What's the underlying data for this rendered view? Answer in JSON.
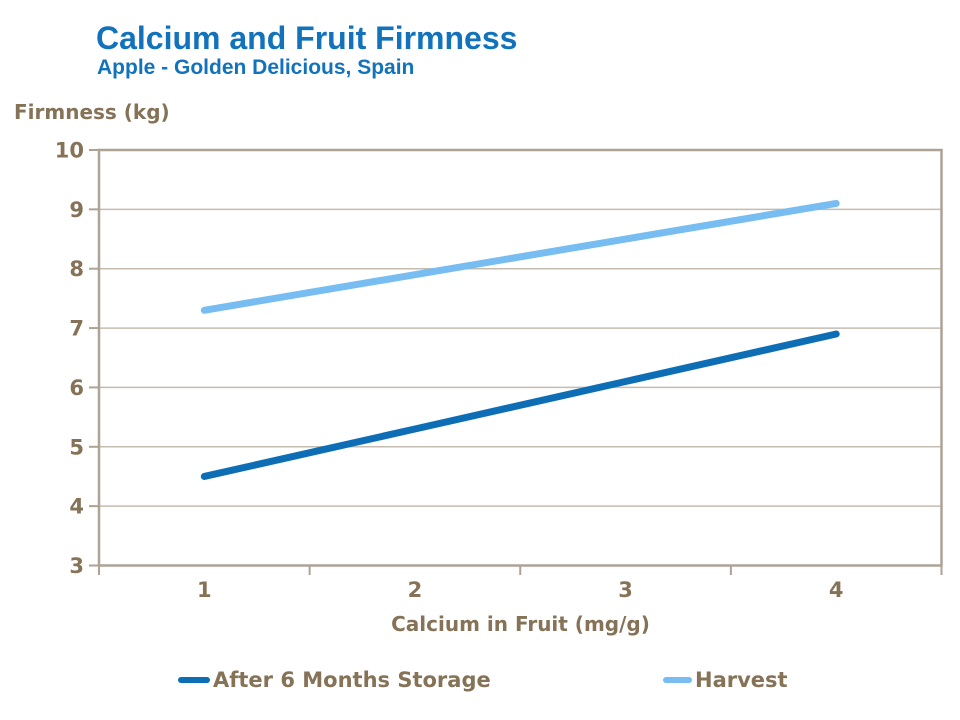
{
  "chart_data": {
    "type": "line",
    "title": "Calcium and Fruit Firmness",
    "subtitle": "Apple - Golden Delicious, Spain",
    "xlabel": "Calcium in Fruit (mg/g)",
    "ylabel": "Firmness (kg)",
    "x": [
      1,
      2,
      3,
      4
    ],
    "ylim": [
      3,
      10
    ],
    "yticks": [
      3,
      4,
      5,
      6,
      7,
      8,
      9,
      10
    ],
    "grid": "horizontal",
    "plot_border": "full-frame",
    "legend_position": "bottom",
    "series": [
      {
        "name": "After 6 Months Storage",
        "color": "#0D6EB6",
        "values": [
          4.5,
          5.3,
          6.1,
          6.9
        ]
      },
      {
        "name": "Harvest",
        "color": "#77BDF2",
        "values": [
          7.3,
          7.9,
          8.5,
          9.1
        ]
      }
    ],
    "colors": {
      "title_blue": "#1272BC",
      "axis_text_brown": "#857257",
      "gridline": "#C5BCB1",
      "axis_frame": "#ADA395",
      "background": "#FFFFFF"
    }
  }
}
